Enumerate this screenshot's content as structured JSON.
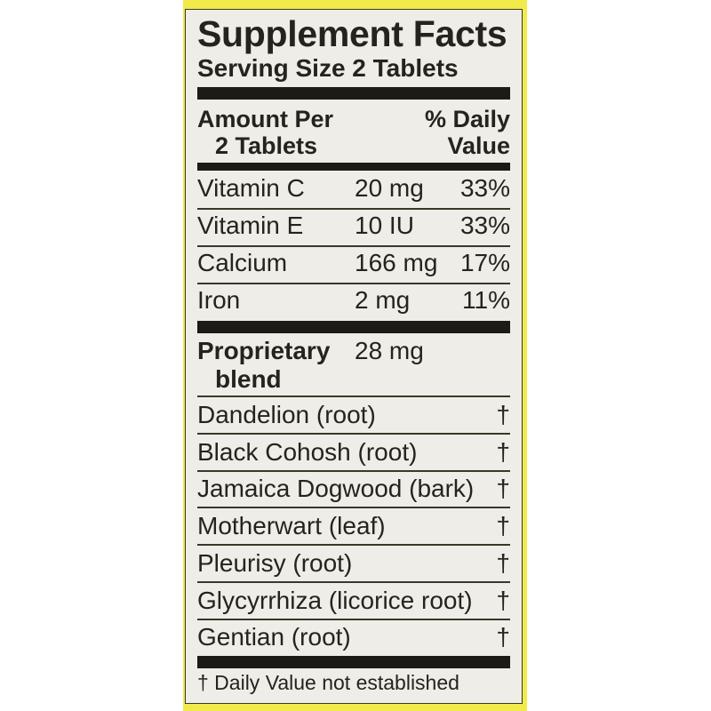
{
  "colors": {
    "background_yellow": "#f2ea4a",
    "panel": "#eeede8",
    "text": "#25231c"
  },
  "title": "Supplement Facts",
  "serving_size": "Serving Size 2 Tablets",
  "header": {
    "amount_line1": "Amount Per",
    "amount_line2": "2 Tablets",
    "dv_line1": "% Daily",
    "dv_line2": "Value"
  },
  "nutrients": [
    {
      "name": "Vitamin C",
      "amount": "20 mg",
      "dv": "33%"
    },
    {
      "name": "Vitamin E",
      "amount": "10 IU",
      "dv": "33%"
    },
    {
      "name": "Calcium",
      "amount": "166 mg",
      "dv": "17%"
    },
    {
      "name": "Iron",
      "amount": "2 mg",
      "dv": "11%"
    }
  ],
  "blend": {
    "line1": "Proprietary",
    "line2": "blend",
    "amount": "28 mg"
  },
  "ingredients": [
    {
      "name": "Dandelion (root)",
      "dv": "†"
    },
    {
      "name": "Black Cohosh (root)",
      "dv": "†"
    },
    {
      "name": "Jamaica Dogwood (bark)",
      "dv": "†"
    },
    {
      "name": "Motherwart (leaf)",
      "dv": "†"
    },
    {
      "name": "Pleurisy (root)",
      "dv": "†"
    },
    {
      "name": "Glycyrrhiza (licorice root)",
      "dv": "†"
    },
    {
      "name": "Gentian (root)",
      "dv": "†"
    }
  ],
  "footnote": "† Daily Value not established"
}
